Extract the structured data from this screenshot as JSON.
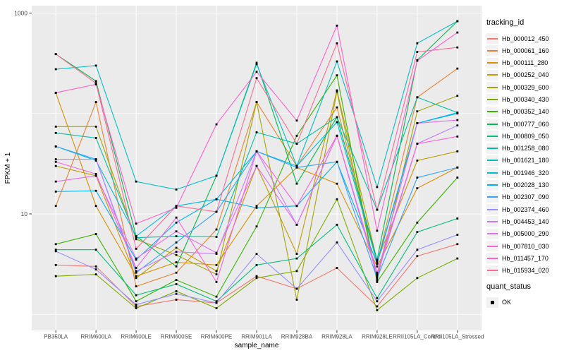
{
  "legend": {
    "tracking_title": "tracking_id",
    "quant_title": "quant_status",
    "quant_items": [
      {
        "label": "OK",
        "marker": "black-square"
      }
    ]
  },
  "colors": {
    "panel_bg": "#EBEBEB",
    "grid": "#FFFFFF",
    "tick_text": "#4D4D4D",
    "axis_title": "#000000",
    "point": "#000000",
    "legend_key_bg": "#F2F2F2"
  },
  "chart_data": {
    "type": "line",
    "title": "",
    "xlabel": "sample_name",
    "ylabel": "FPKM + 1",
    "y_scale": "log10",
    "ylim": [
      0.69,
      1190
    ],
    "grid": true,
    "legend_position": "right",
    "point_marker": "filled-black-square",
    "y_tick_labels": [
      "1000",
      "10"
    ],
    "y_tick_values": [
      1000,
      10
    ],
    "y_grid_values": [
      1000,
      100,
      10,
      1
    ],
    "x_categories": [
      "PB350LA",
      "RRIM600LA",
      "RRIM600LE",
      "RRIM600SE",
      "RRIM600PE",
      "RRIM901LA",
      "RRIM928BA",
      "RRIM928LA",
      "RRIM928LE",
      "RRII105LA_Control",
      "RRII105LA_Stressed"
    ],
    "series": [
      {
        "name": "Hb_000012_450",
        "color": "#F8766D",
        "values": [
          3.1,
          3.0,
          1.2,
          1.4,
          1.3,
          2.4,
          1.8,
          2.9,
          1.2,
          3.8,
          5.0
        ]
      },
      {
        "name": "Hb_000061_160",
        "color": "#EA8331",
        "values": [
          12,
          130,
          1.9,
          2.6,
          7.0,
          130,
          30,
          115,
          3.2,
          145,
          280
        ]
      },
      {
        "name": "Hb_000111_280",
        "color": "#D89000",
        "values": [
          160,
          12,
          2.4,
          3.3,
          3.1,
          12,
          29,
          20,
          3.0,
          18,
          29
        ]
      },
      {
        "name": "Hb_000252_040",
        "color": "#C09B00",
        "values": [
          30,
          24,
          2.3,
          4.6,
          2.7,
          30,
          4.0,
          170,
          3.4,
          34,
          42
        ]
      },
      {
        "name": "Hb_000329_600",
        "color": "#A3A500",
        "values": [
          74,
          74,
          5.6,
          3.9,
          2.5,
          130,
          1.4,
          165,
          2.2,
          105,
          150
        ]
      },
      {
        "name": "Hb_000340_430",
        "color": "#7CAE00",
        "values": [
          2.4,
          2.5,
          1.15,
          1.7,
          1.15,
          2.3,
          2.7,
          14,
          1.1,
          2.3,
          3.6
        ]
      },
      {
        "name": "Hb_000352_140",
        "color": "#39B600",
        "values": [
          5.0,
          6.3,
          1.35,
          2.2,
          1.5,
          7.5,
          60,
          240,
          2.1,
          8.2,
          23
        ]
      },
      {
        "name": "Hb_000777_060",
        "color": "#00BB4E",
        "values": [
          390,
          210,
          6.0,
          3.0,
          24,
          320,
          20,
          92,
          3.5,
          340,
          830
        ]
      },
      {
        "name": "Hb_000809_050",
        "color": "#00BF7D",
        "values": [
          4.4,
          4.4,
          1.55,
          2.0,
          1.35,
          3.1,
          3.6,
          7.8,
          1.45,
          6.6,
          9.0
        ]
      },
      {
        "name": "Hb_001258_080",
        "color": "#00C1A3",
        "values": [
          64,
          57,
          5.8,
          6.0,
          5.9,
          65,
          50,
          92,
          11,
          145,
          102
        ]
      },
      {
        "name": "Hb_001621_180",
        "color": "#00BFC4",
        "values": [
          276,
          300,
          21,
          17.5,
          24,
          310,
          30,
          330,
          18.5,
          500,
          830
        ]
      },
      {
        "name": "Hb_001946_320",
        "color": "#00BAE0",
        "values": [
          47,
          34,
          6.0,
          12,
          14,
          42,
          30,
          82,
          3.3,
          80,
          102
        ]
      },
      {
        "name": "Hb_002028_130",
        "color": "#00B0F6",
        "values": [
          16.7,
          17,
          3.5,
          8.2,
          14,
          11.5,
          12,
          33,
          3.2,
          80,
          100
        ]
      },
      {
        "name": "Hb_002307_090",
        "color": "#35A2FF",
        "values": [
          47,
          35,
          2.6,
          5.2,
          10.5,
          42,
          29,
          33,
          2.3,
          23,
          29
        ]
      },
      {
        "name": "Hb_002374_460",
        "color": "#9590FF",
        "values": [
          4.25,
          2.8,
          1.25,
          1.6,
          1.3,
          4.0,
          1.8,
          5.2,
          1.35,
          4.4,
          6.2
        ]
      },
      {
        "name": "Hb_004453_140",
        "color": "#C77CFF",
        "values": [
          35,
          35,
          2.7,
          4.2,
          4.0,
          42,
          7.8,
          60,
          2.4,
          50,
          76
        ]
      },
      {
        "name": "Hb_005000_290",
        "color": "#E76BF3",
        "values": [
          21,
          24,
          3.6,
          6.7,
          4.1,
          30,
          7.8,
          60,
          2.5,
          80,
          86
        ]
      },
      {
        "name": "Hb_007810_030",
        "color": "#FA62DB",
        "values": [
          33,
          25,
          2.9,
          9.2,
          2.1,
          42,
          12,
          60,
          2.6,
          50,
          59
        ]
      },
      {
        "name": "Hb_011457_170",
        "color": "#FF61CC",
        "values": [
          161,
          195,
          8.0,
          11.5,
          78,
          260,
          85,
          750,
          6.8,
          335,
          640
        ]
      },
      {
        "name": "Hb_015934_020",
        "color": "#FF6A98",
        "values": [
          390,
          200,
          4.5,
          12,
          10.5,
          225,
          50,
          500,
          11,
          410,
          455
        ]
      }
    ]
  }
}
